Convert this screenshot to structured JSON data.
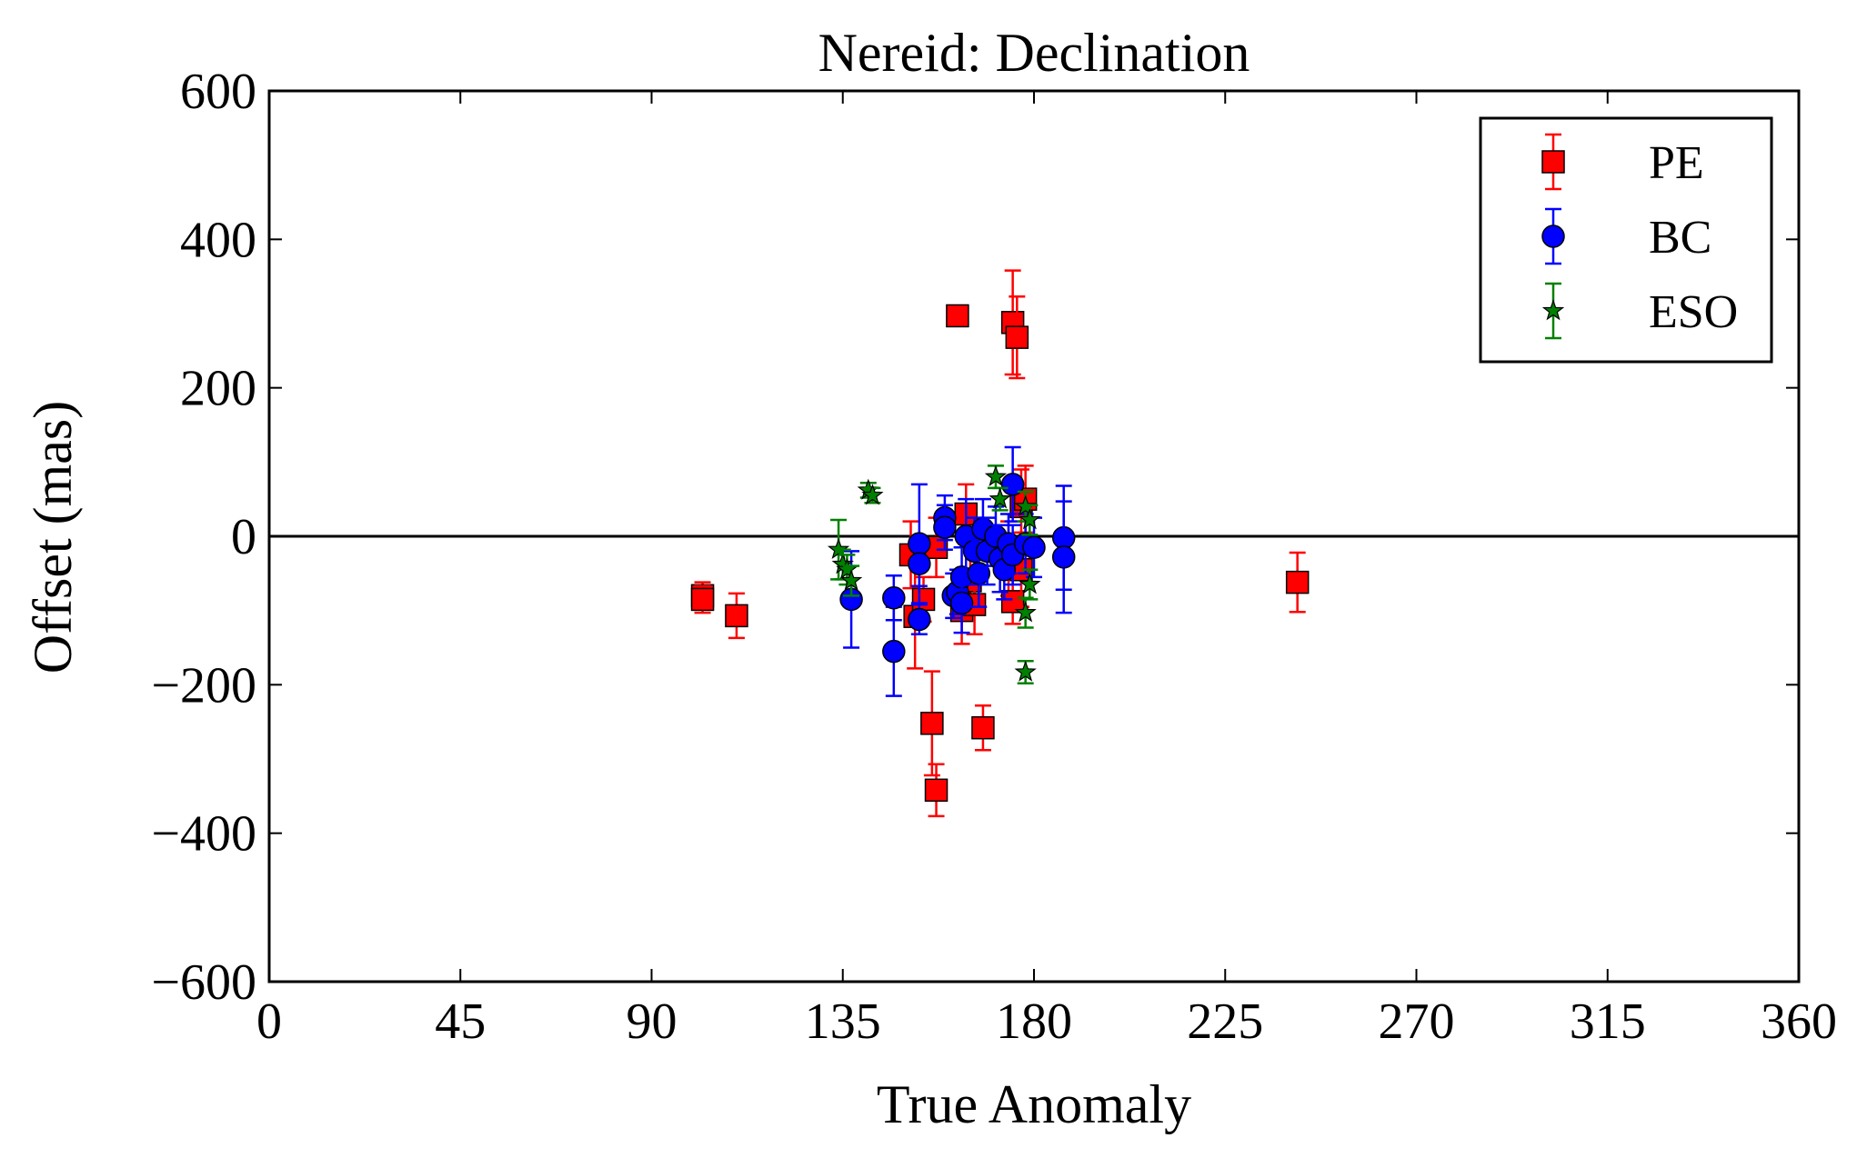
{
  "chart_data": {
    "type": "scatter",
    "title": "Nereid: Declination",
    "xlabel": "True Anomaly",
    "ylabel": "Offset (mas)",
    "xlim": [
      0,
      360
    ],
    "ylim": [
      -600,
      600
    ],
    "xticks": [
      0,
      45,
      90,
      135,
      180,
      225,
      270,
      315,
      360
    ],
    "yticks": [
      600,
      400,
      200,
      0,
      -200,
      -400,
      -600
    ],
    "xtick_labels": [
      "0",
      "45",
      "90",
      "135",
      "180",
      "225",
      "270",
      "315",
      "360"
    ],
    "ytick_labels": [
      "600",
      "400",
      "200",
      "0",
      "−200",
      "−400",
      "−600"
    ],
    "reference_line": 0,
    "grid": false,
    "legend_position": "top-right",
    "series": [
      {
        "name": "PE",
        "marker": "square",
        "color": "#ff0000",
        "error_color": "#ff0000",
        "points": [
          {
            "x": 102,
            "y": -80,
            "err": 18
          },
          {
            "x": 102,
            "y": -85,
            "err": 18
          },
          {
            "x": 110,
            "y": -107,
            "err": 30
          },
          {
            "x": 151,
            "y": -25,
            "err": 45
          },
          {
            "x": 152,
            "y": -108,
            "err": 70
          },
          {
            "x": 154,
            "y": -85,
            "err": 30
          },
          {
            "x": 156,
            "y": -252,
            "err": 70
          },
          {
            "x": 157,
            "y": -15,
            "err": 40
          },
          {
            "x": 157,
            "y": -342,
            "err": 35
          },
          {
            "x": 162,
            "y": 297,
            "err": 10
          },
          {
            "x": 163,
            "y": -100,
            "err": 45
          },
          {
            "x": 164,
            "y": 30,
            "err": 40
          },
          {
            "x": 165,
            "y": -60,
            "err": 45
          },
          {
            "x": 166,
            "y": -92,
            "err": 40
          },
          {
            "x": 168,
            "y": -258,
            "err": 30
          },
          {
            "x": 174,
            "y": -30,
            "err": 50
          },
          {
            "x": 175,
            "y": -88,
            "err": 30
          },
          {
            "x": 175,
            "y": 288,
            "err": 70
          },
          {
            "x": 176,
            "y": 268,
            "err": 55
          },
          {
            "x": 177,
            "y": 40,
            "err": 50
          },
          {
            "x": 177,
            "y": -45,
            "err": 50
          },
          {
            "x": 178,
            "y": 50,
            "err": 45
          },
          {
            "x": 242,
            "y": -62,
            "err": 40
          }
        ]
      },
      {
        "name": "BC",
        "marker": "circle",
        "color": "#0000ff",
        "error_color": "#0000ff",
        "points": [
          {
            "x": 137,
            "y": -85,
            "err": 65
          },
          {
            "x": 147,
            "y": -155,
            "err": 60
          },
          {
            "x": 147,
            "y": -83,
            "err": 30
          },
          {
            "x": 153,
            "y": -10,
            "err": 80
          },
          {
            "x": 153,
            "y": -37,
            "err": 30
          },
          {
            "x": 153,
            "y": -112,
            "err": 20
          },
          {
            "x": 159,
            "y": 25,
            "err": 30
          },
          {
            "x": 159,
            "y": 12,
            "err": 30
          },
          {
            "x": 161,
            "y": -80,
            "err": 30
          },
          {
            "x": 162,
            "y": -75,
            "err": 30
          },
          {
            "x": 163,
            "y": -55,
            "err": 40
          },
          {
            "x": 163,
            "y": -90,
            "err": 40
          },
          {
            "x": 164,
            "y": 0,
            "err": 50
          },
          {
            "x": 166,
            "y": -20,
            "err": 45
          },
          {
            "x": 167,
            "y": -50,
            "err": 45
          },
          {
            "x": 168,
            "y": 10,
            "err": 40
          },
          {
            "x": 169,
            "y": -20,
            "err": 45
          },
          {
            "x": 171,
            "y": 0,
            "err": 40
          },
          {
            "x": 172,
            "y": -30,
            "err": 45
          },
          {
            "x": 173,
            "y": -45,
            "err": 40
          },
          {
            "x": 174,
            "y": -10,
            "err": 40
          },
          {
            "x": 175,
            "y": 70,
            "err": 50
          },
          {
            "x": 175,
            "y": -25,
            "err": 40
          },
          {
            "x": 178,
            "y": -10,
            "err": 40
          },
          {
            "x": 180,
            "y": -15,
            "err": 40
          },
          {
            "x": 187,
            "y": -2,
            "err": 70
          },
          {
            "x": 187,
            "y": -28,
            "err": 75
          }
        ]
      },
      {
        "name": "ESO",
        "marker": "star",
        "color": "#008000",
        "error_color": "#008000",
        "points": [
          {
            "x": 134,
            "y": -18,
            "err": 40
          },
          {
            "x": 135,
            "y": -38,
            "err": 20
          },
          {
            "x": 136,
            "y": -45,
            "err": 20
          },
          {
            "x": 137,
            "y": -60,
            "err": 20
          },
          {
            "x": 141,
            "y": 62,
            "err": 10
          },
          {
            "x": 142,
            "y": 55,
            "err": 10
          },
          {
            "x": 171,
            "y": 80,
            "err": 15
          },
          {
            "x": 172,
            "y": 50,
            "err": 15
          },
          {
            "x": 178,
            "y": 40,
            "err": 20
          },
          {
            "x": 178,
            "y": -103,
            "err": 20
          },
          {
            "x": 178,
            "y": -183,
            "err": 15
          },
          {
            "x": 179,
            "y": 22,
            "err": 20
          },
          {
            "x": 179,
            "y": -65,
            "err": 20
          }
        ]
      }
    ]
  }
}
